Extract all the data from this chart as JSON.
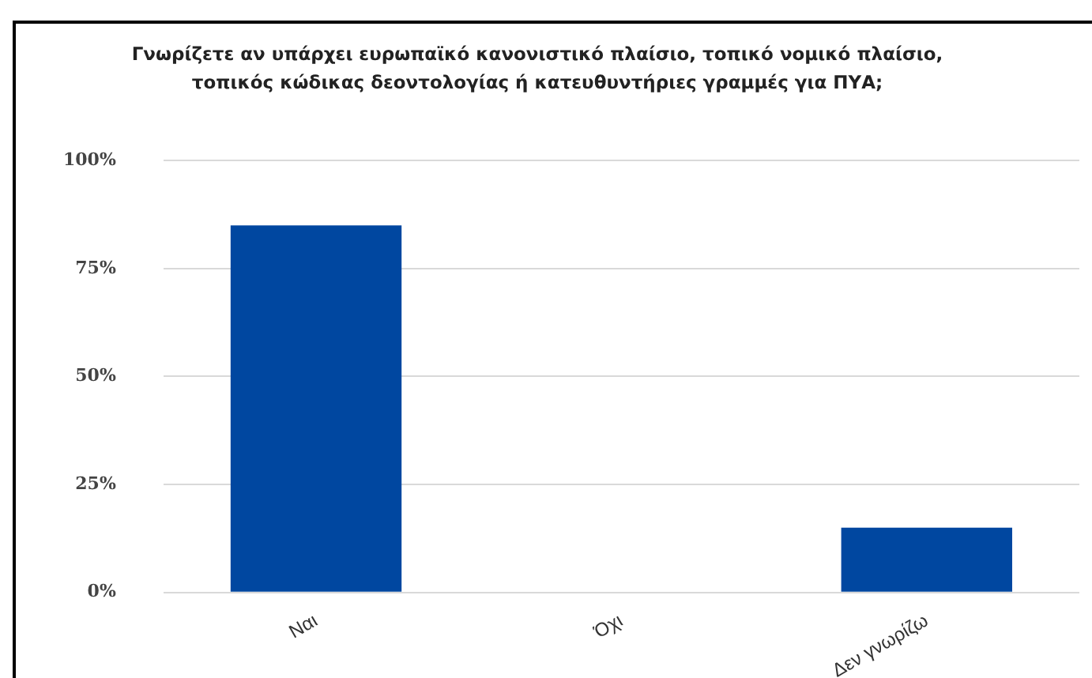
{
  "chart_data": {
    "type": "bar",
    "title": "Γνωρίζετε αν υπάρχει ευρωπαϊκό κανονιστικό πλαίσιο, τοπικό νομικό πλαίσιο, τοπικός κώδικας δεοντολογίας ή κατευθυντήριες γραμμές για ΠΥΑ;",
    "categories": [
      "Ναι",
      "Όχι",
      "Δεν γνωρίζω"
    ],
    "values": [
      85,
      0,
      15
    ],
    "color": "#0047a0",
    "ylim": [
      0,
      100
    ],
    "yticks": [
      {
        "value": 0,
        "label": "0%"
      },
      {
        "value": 25,
        "label": "25%"
      },
      {
        "value": 50,
        "label": "50%"
      },
      {
        "value": 75,
        "label": "75%"
      },
      {
        "value": 100,
        "label": "100%"
      }
    ],
    "grid": "y",
    "legend": false
  }
}
